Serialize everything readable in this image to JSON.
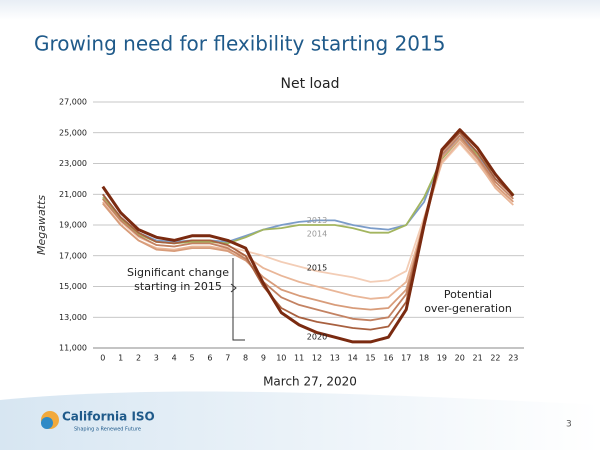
{
  "slide": {
    "title": "Growing need for flexibility starting 2015",
    "page_number": "3",
    "logo": {
      "name": "California ISO",
      "tagline": "Shaping a Renewed Future"
    }
  },
  "chart_data": {
    "type": "line",
    "title": "Net load",
    "x_label": "March 27, 2020",
    "y_label": "Megawatts",
    "x": [
      0,
      1,
      2,
      3,
      4,
      5,
      6,
      7,
      8,
      9,
      10,
      11,
      12,
      13,
      14,
      15,
      16,
      17,
      18,
      19,
      20,
      21,
      22,
      23
    ],
    "xlim": [
      -0.55,
      23.6
    ],
    "ylim": [
      11000,
      27000
    ],
    "yticks": [
      {
        "value": 11000,
        "label": "11,000"
      },
      {
        "value": 13000,
        "label": "13,000"
      },
      {
        "value": 15000,
        "label": "15,000"
      },
      {
        "value": 17000,
        "label": "17,000"
      },
      {
        "value": 19000,
        "label": "19,000"
      },
      {
        "value": 21000,
        "label": "21,000"
      },
      {
        "value": 23000,
        "label": "23,000"
      },
      {
        "value": 25000,
        "label": "25,000"
      },
      {
        "value": 27000,
        "label": "27,000"
      }
    ],
    "grid": true,
    "series": [
      {
        "name": "2013",
        "color": "#7b9cc9",
        "values": [
          21000,
          19500,
          18500,
          18000,
          17900,
          18000,
          18000,
          17900,
          18300,
          18700,
          19000,
          19200,
          19300,
          19300,
          19000,
          18800,
          18700,
          19000,
          20500,
          23500,
          24800,
          23600,
          22000,
          21000
        ]
      },
      {
        "name": "2014",
        "color": "#a3b55f",
        "values": [
          20800,
          19400,
          18400,
          17900,
          17800,
          17900,
          17900,
          17800,
          18200,
          18700,
          18800,
          19000,
          19000,
          19000,
          18800,
          18500,
          18500,
          19000,
          20800,
          23300,
          24600,
          23600,
          22300,
          21000
        ]
      },
      {
        "name": "2015",
        "color": "#f3cdb6",
        "values": [
          20700,
          19200,
          18200,
          17700,
          17600,
          17800,
          17800,
          17600,
          17300,
          17000,
          16600,
          16300,
          16000,
          15800,
          15600,
          15300,
          15400,
          16000,
          19500,
          23000,
          24300,
          23000,
          21500,
          20500
        ]
      },
      {
        "color": "#e9b698",
        "values": [
          20500,
          19000,
          18000,
          17500,
          17400,
          17600,
          17600,
          17400,
          17000,
          16200,
          15700,
          15300,
          15000,
          14700,
          14400,
          14200,
          14300,
          15300,
          19200,
          23100,
          24400,
          23100,
          21400,
          20300
        ]
      },
      {
        "color": "#d89c7a",
        "values": [
          20400,
          19000,
          18000,
          17400,
          17300,
          17500,
          17500,
          17300,
          16700,
          15600,
          14800,
          14400,
          14100,
          13800,
          13600,
          13500,
          13600,
          14800,
          19000,
          23400,
          24600,
          23300,
          21600,
          20500
        ]
      },
      {
        "color": "#c38262",
        "values": [
          20700,
          19300,
          18300,
          17700,
          17600,
          17800,
          17800,
          17500,
          16800,
          15300,
          14300,
          13800,
          13500,
          13200,
          12900,
          12800,
          13000,
          14500,
          19200,
          23600,
          24800,
          23400,
          21800,
          20700
        ]
      },
      {
        "color": "#a8603f",
        "values": [
          21000,
          19500,
          18500,
          17900,
          17800,
          18000,
          18000,
          17700,
          17000,
          15000,
          13600,
          13000,
          12700,
          12500,
          12300,
          12200,
          12400,
          14000,
          19300,
          23800,
          25000,
          23700,
          22000,
          20900
        ]
      },
      {
        "name": "2020",
        "color": "#7a2a10",
        "values": [
          21500,
          19800,
          18700,
          18200,
          18000,
          18300,
          18300,
          18000,
          17500,
          15200,
          13300,
          12500,
          12000,
          11700,
          11400,
          11400,
          11700,
          13500,
          19000,
          23900,
          25200,
          24000,
          22300,
          20900
        ]
      }
    ],
    "annotations": [
      "Significant change starting in 2015",
      "Potential over-generation"
    ]
  }
}
